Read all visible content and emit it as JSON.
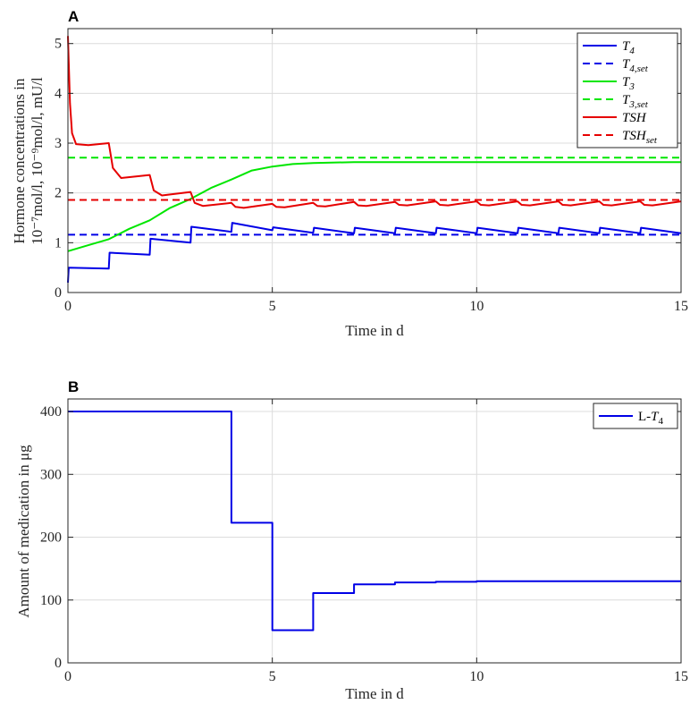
{
  "chart_data": [
    {
      "panel": "A",
      "type": "line",
      "xlabel": "Time in d",
      "ylabel_line1": "Hormone concentrations in",
      "ylabel_line2": "10⁻⁷mol/l, 10⁻⁹mol/l, mU/l",
      "xlim": [
        0,
        15
      ],
      "ylim": [
        0,
        5.3
      ],
      "xticks": [
        0,
        5,
        10,
        15
      ],
      "yticks": [
        0,
        1,
        2,
        3,
        4,
        5
      ],
      "grid": true,
      "legend_position": "top-right",
      "series": [
        {
          "name": "T4",
          "legend_main": "T",
          "legend_sub": "4",
          "color": "#0000e6",
          "style": "solid",
          "points": [
            [
              0,
              0.2
            ],
            [
              0.02,
              0.5
            ],
            [
              1,
              0.48
            ],
            [
              1.02,
              0.8
            ],
            [
              2,
              0.76
            ],
            [
              2.02,
              1.08
            ],
            [
              3,
              1.0
            ],
            [
              3.02,
              1.32
            ],
            [
              4,
              1.22
            ],
            [
              4.02,
              1.4
            ],
            [
              5,
              1.25
            ],
            [
              5.02,
              1.31
            ],
            [
              6,
              1.2
            ],
            [
              6.02,
              1.3
            ],
            [
              7,
              1.19
            ],
            [
              7.02,
              1.3
            ],
            [
              8,
              1.19
            ],
            [
              8.02,
              1.3
            ],
            [
              9,
              1.19
            ],
            [
              9.02,
              1.3
            ],
            [
              10,
              1.19
            ],
            [
              10.02,
              1.3
            ],
            [
              11,
              1.19
            ],
            [
              11.02,
              1.3
            ],
            [
              12,
              1.19
            ],
            [
              12.02,
              1.3
            ],
            [
              13,
              1.19
            ],
            [
              13.02,
              1.3
            ],
            [
              14,
              1.19
            ],
            [
              14.02,
              1.3
            ],
            [
              15,
              1.19
            ]
          ]
        },
        {
          "name": "T4,set",
          "legend_main": "T",
          "legend_sub": "4,set",
          "color": "#0000e6",
          "style": "dashed",
          "points": [
            [
              0,
              1.16
            ],
            [
              15,
              1.16
            ]
          ]
        },
        {
          "name": "T3",
          "legend_main": "T",
          "legend_sub": "3",
          "color": "#00e600",
          "style": "solid",
          "points": [
            [
              0,
              0.83
            ],
            [
              0.5,
              0.95
            ],
            [
              1,
              1.07
            ],
            [
              1.5,
              1.28
            ],
            [
              2,
              1.45
            ],
            [
              2.5,
              1.7
            ],
            [
              3,
              1.88
            ],
            [
              3.5,
              2.1
            ],
            [
              4,
              2.27
            ],
            [
              4.5,
              2.45
            ],
            [
              5,
              2.53
            ],
            [
              5.5,
              2.58
            ],
            [
              6,
              2.6
            ],
            [
              7,
              2.62
            ],
            [
              8,
              2.62
            ],
            [
              9,
              2.62
            ],
            [
              10,
              2.62
            ],
            [
              11,
              2.62
            ],
            [
              12,
              2.62
            ],
            [
              13,
              2.62
            ],
            [
              14,
              2.62
            ],
            [
              15,
              2.62
            ]
          ]
        },
        {
          "name": "T3,set",
          "legend_main": "T",
          "legend_sub": "3,set",
          "color": "#00e600",
          "style": "dashed",
          "points": [
            [
              0,
              2.71
            ],
            [
              15,
              2.71
            ]
          ]
        },
        {
          "name": "TSH",
          "legend_main": "TSH",
          "legend_sub": "",
          "color": "#e60000",
          "style": "solid",
          "points": [
            [
              0,
              5.15
            ],
            [
              0.05,
              3.8
            ],
            [
              0.1,
              3.2
            ],
            [
              0.2,
              2.98
            ],
            [
              0.5,
              2.96
            ],
            [
              1,
              3.0
            ],
            [
              1.1,
              2.5
            ],
            [
              1.3,
              2.3
            ],
            [
              2,
              2.36
            ],
            [
              2.1,
              2.05
            ],
            [
              2.3,
              1.95
            ],
            [
              3,
              2.02
            ],
            [
              3.1,
              1.8
            ],
            [
              3.3,
              1.74
            ],
            [
              4,
              1.8
            ],
            [
              4.1,
              1.72
            ],
            [
              4.3,
              1.7
            ],
            [
              5,
              1.78
            ],
            [
              5.1,
              1.72
            ],
            [
              5.3,
              1.71
            ],
            [
              6,
              1.8
            ],
            [
              6.1,
              1.74
            ],
            [
              6.3,
              1.73
            ],
            [
              7,
              1.82
            ],
            [
              7.1,
              1.75
            ],
            [
              7.3,
              1.74
            ],
            [
              8,
              1.82
            ],
            [
              8.1,
              1.76
            ],
            [
              8.3,
              1.75
            ],
            [
              9,
              1.83
            ],
            [
              9.1,
              1.76
            ],
            [
              9.3,
              1.75
            ],
            [
              10,
              1.83
            ],
            [
              10.1,
              1.76
            ],
            [
              10.3,
              1.75
            ],
            [
              11,
              1.83
            ],
            [
              11.1,
              1.76
            ],
            [
              11.3,
              1.75
            ],
            [
              12,
              1.83
            ],
            [
              12.1,
              1.76
            ],
            [
              12.3,
              1.75
            ],
            [
              13,
              1.83
            ],
            [
              13.1,
              1.76
            ],
            [
              13.3,
              1.75
            ],
            [
              14,
              1.83
            ],
            [
              14.1,
              1.76
            ],
            [
              14.3,
              1.75
            ],
            [
              15,
              1.83
            ]
          ]
        },
        {
          "name": "TSHset",
          "legend_main": "TSH",
          "legend_sub": "set",
          "color": "#e60000",
          "style": "dashed",
          "points": [
            [
              0,
              1.86
            ],
            [
              15,
              1.86
            ]
          ]
        }
      ]
    },
    {
      "panel": "B",
      "type": "line",
      "xlabel": "Time in d",
      "ylabel": "Amount of medication in μg",
      "xlim": [
        0,
        15
      ],
      "ylim": [
        0,
        420
      ],
      "xticks": [
        0,
        5,
        10,
        15
      ],
      "yticks": [
        0,
        100,
        200,
        300,
        400
      ],
      "grid": true,
      "legend_position": "top-right",
      "series": [
        {
          "name": "L-T4",
          "legend_main": "L-T",
          "legend_sub": "4",
          "color": "#0000e6",
          "style": "solid",
          "steps": [
            [
              0,
              400
            ],
            [
              4,
              223
            ],
            [
              5,
              52
            ],
            [
              6,
              111
            ],
            [
              7,
              125
            ],
            [
              8,
              128
            ],
            [
              9,
              129
            ],
            [
              10,
              130
            ],
            [
              11,
              130
            ],
            [
              12,
              130
            ],
            [
              13,
              130
            ],
            [
              14,
              130
            ]
          ],
          "x_end": 15
        }
      ]
    }
  ]
}
